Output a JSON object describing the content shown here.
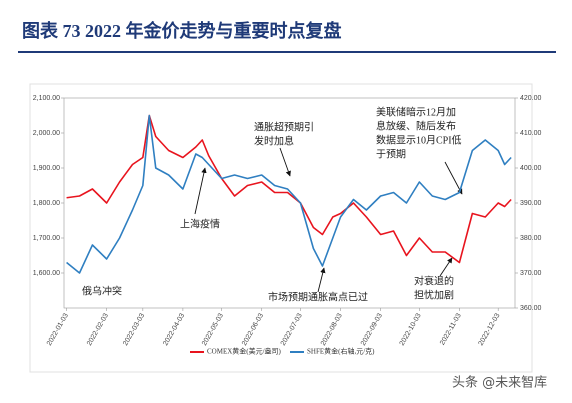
{
  "chart_data": {
    "type": "line",
    "title": "图表 73   2022 年金价走势与重要时点复盘",
    "x": [
      "2022-01-03",
      "2022-01-13",
      "2022-01-23",
      "2022-02-03",
      "2022-02-13",
      "2022-02-23",
      "2022-03-03",
      "2022-03-08",
      "2022-03-13",
      "2022-03-23",
      "2022-04-03",
      "2022-04-13",
      "2022-04-18",
      "2022-04-23",
      "2022-05-03",
      "2022-05-13",
      "2022-05-23",
      "2022-06-03",
      "2022-06-13",
      "2022-06-23",
      "2022-07-03",
      "2022-07-13",
      "2022-07-20",
      "2022-07-28",
      "2022-08-03",
      "2022-08-13",
      "2022-08-23",
      "2022-09-03",
      "2022-09-13",
      "2022-09-23",
      "2022-10-03",
      "2022-10-13",
      "2022-10-23",
      "2022-11-03",
      "2022-11-13",
      "2022-11-23",
      "2022-12-03",
      "2022-12-08",
      "2022-12-13"
    ],
    "series": [
      {
        "name": "COMEX黄金(美元/盎司)",
        "color": "#e8141e",
        "axis": "y",
        "values": [
          1815,
          1820,
          1840,
          1800,
          1860,
          1910,
          1930,
          2050,
          1990,
          1950,
          1930,
          1960,
          1980,
          1935,
          1870,
          1820,
          1850,
          1860,
          1830,
          1830,
          1800,
          1730,
          1710,
          1760,
          1770,
          1800,
          1760,
          1710,
          1720,
          1650,
          1700,
          1660,
          1660,
          1630,
          1770,
          1760,
          1800,
          1790,
          1810
        ]
      },
      {
        "name": "SHFE黄金(右轴,元/克)",
        "color": "#2f7fc1",
        "axis": "y2",
        "values": [
          373,
          370,
          378,
          374,
          380,
          388,
          395,
          415,
          400,
          398,
          394,
          404,
          403,
          401,
          397,
          398,
          397,
          398,
          395,
          394,
          390,
          377,
          372,
          380,
          386,
          391,
          388,
          392,
          393,
          390,
          396,
          392,
          391,
          393,
          405,
          408,
          405,
          401,
          403
        ]
      }
    ],
    "xlim": [
      "2022-01-01",
      "2022-12-16"
    ],
    "xticks": [
      "2022-01-03",
      "2022-02-03",
      "2022-03-03",
      "2022-04-03",
      "2022-05-03",
      "2022-06-03",
      "2022-07-03",
      "2022-08-03",
      "2022-09-03",
      "2022-10-03",
      "2022-11-03",
      "2022-12-03"
    ],
    "ylim": [
      1500,
      2100
    ],
    "yticks": [
      {
        "value": 1600,
        "label": "1,600.00"
      },
      {
        "value": 1700,
        "label": "1,700.00"
      },
      {
        "value": 1800,
        "label": "1,800.00"
      },
      {
        "value": 1900,
        "label": "1,900.00"
      },
      {
        "value": 2000,
        "label": "2,000.00"
      },
      {
        "value": 2100,
        "label": "2,100.00"
      }
    ],
    "y2lim": [
      360,
      420
    ],
    "y2ticks": [
      {
        "value": 360,
        "label": "360.00"
      },
      {
        "value": 370,
        "label": "370.00"
      },
      {
        "value": 380,
        "label": "380.00"
      },
      {
        "value": 390,
        "label": "390.00"
      },
      {
        "value": 400,
        "label": "400.00"
      },
      {
        "value": 410,
        "label": "410.00"
      },
      {
        "value": 420,
        "label": "420.00"
      }
    ],
    "legend": "bottom",
    "annotations": [
      {
        "lines": [
          "俄乌冲突"
        ]
      },
      {
        "lines": [
          "上海疫情"
        ]
      },
      {
        "lines": [
          "通胀超预期引",
          "发时加息"
        ]
      },
      {
        "lines": [
          "市场预期通胀高点已过"
        ]
      },
      {
        "lines": [
          "对衰退的",
          "担忧加剧"
        ]
      },
      {
        "lines": [
          "美联储暗示12月加",
          "息放缓、随后发布",
          "数据显示10月CPI低",
          "于预期"
        ]
      }
    ],
    "watermark": "头条 @未来智库"
  }
}
